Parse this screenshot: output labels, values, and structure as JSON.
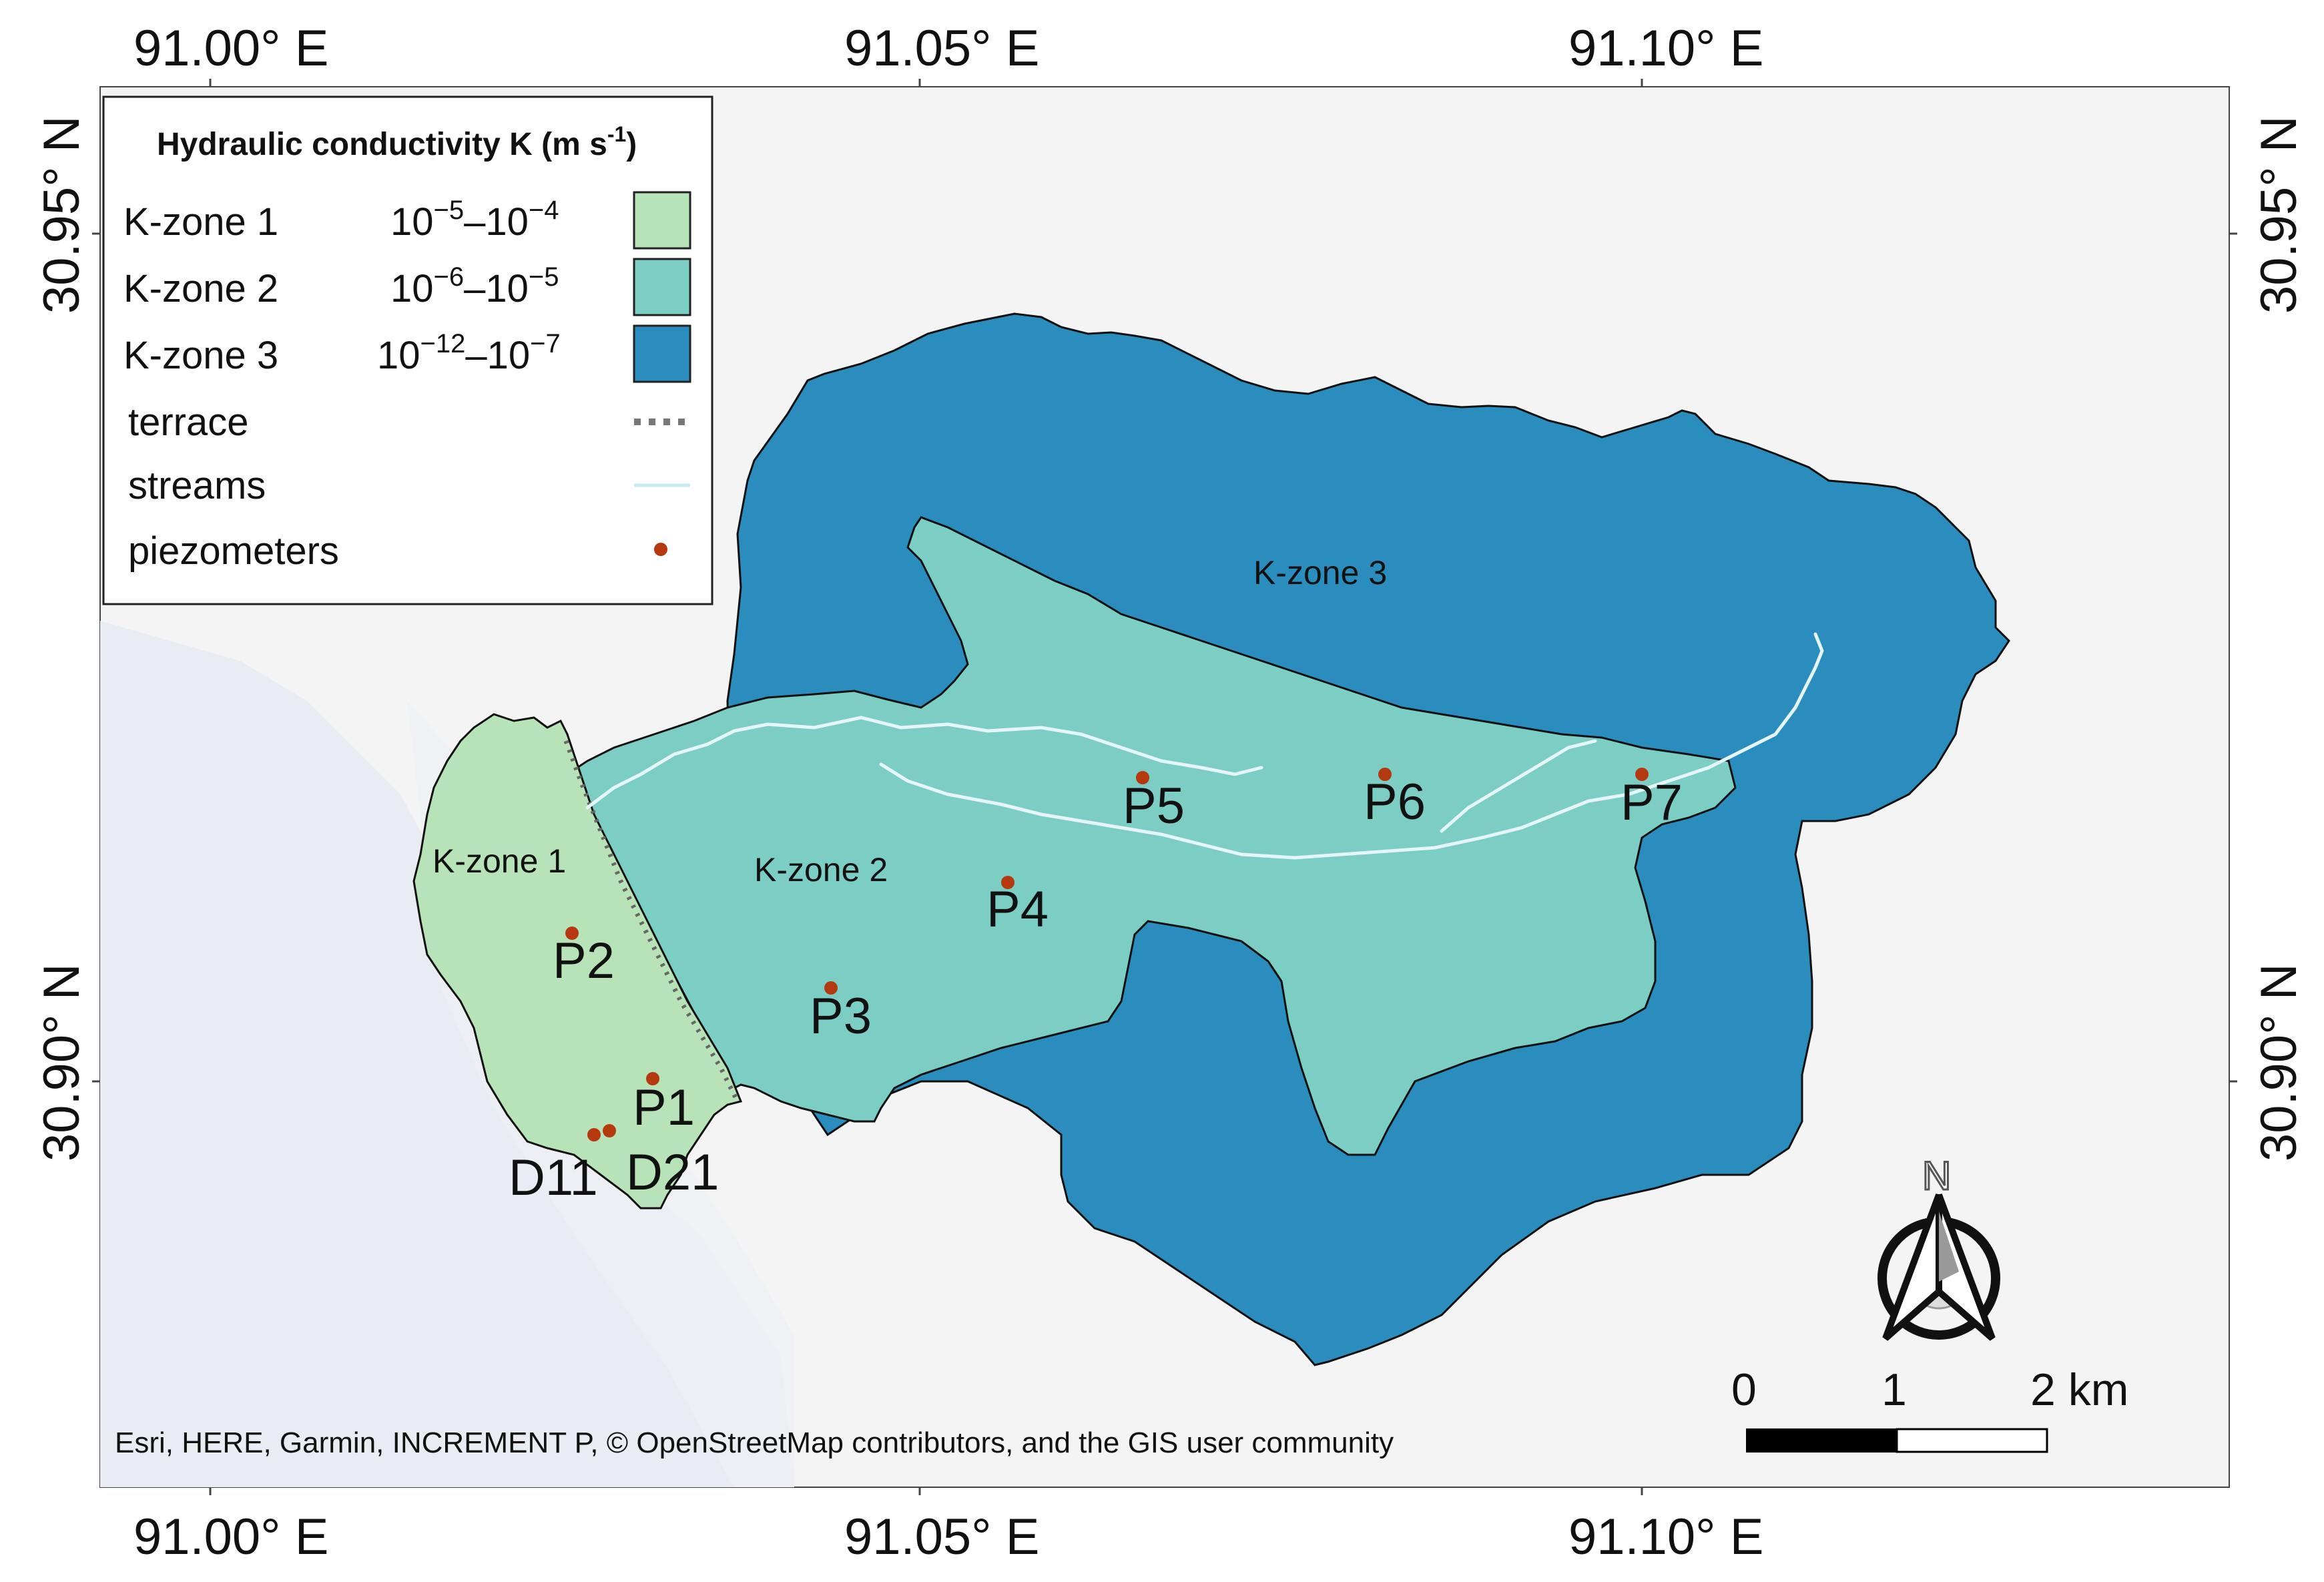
{
  "axes": {
    "longitude_labels": [
      "91.00° E",
      "91.05° E",
      "91.10° E"
    ],
    "latitude_labels": [
      "30.95° N",
      "30.90° N"
    ]
  },
  "legend": {
    "title": "Hydraulic conductivity K (m s",
    "title_exponent": "-1",
    "title_close": ")",
    "zones": [
      {
        "name": "K-zone 1",
        "range_a_base": "10",
        "range_a_exp": "−5",
        "range_sep": "–",
        "range_b_base": "10",
        "range_b_exp": "−4",
        "color": "#b8e3b8"
      },
      {
        "name": "K-zone 2",
        "range_a_base": "10",
        "range_a_exp": "−6",
        "range_sep": "–",
        "range_b_base": "10",
        "range_b_exp": "−5",
        "color": "#7ccdc4"
      },
      {
        "name": "K-zone 3",
        "range_a_base": "10",
        "range_a_exp": "−12",
        "range_sep": "–",
        "range_b_base": "10",
        "range_b_exp": "−7",
        "color": "#2b8cbe"
      }
    ],
    "terrace_label": "terrace",
    "streams_label": "streams",
    "piezometers_label": "piezometers"
  },
  "zone_labels": [
    "K-zone 1",
    "K-zone 2",
    "K-zone 3"
  ],
  "piezometers": [
    "P1",
    "P2",
    "P3",
    "P4",
    "P5",
    "P6",
    "P7",
    "D11",
    "D21"
  ],
  "attribution": "Esri, HERE, Garmin, INCREMENT P, © OpenStreetMap contributors, and the GIS user community",
  "scale_bar": {
    "labels": [
      "0",
      "1",
      "2 km"
    ]
  },
  "north_arrow": {
    "label": "N"
  },
  "colors": {
    "zone1": "#b8e3b8",
    "zone2": "#7ccdc4",
    "zone3": "#2b8cbe",
    "stream": "#e6f5f7",
    "piezometer": "#b5390f",
    "terrace": "#666666",
    "basemap": "#f4f4f4",
    "water": "#e9ecf2"
  }
}
